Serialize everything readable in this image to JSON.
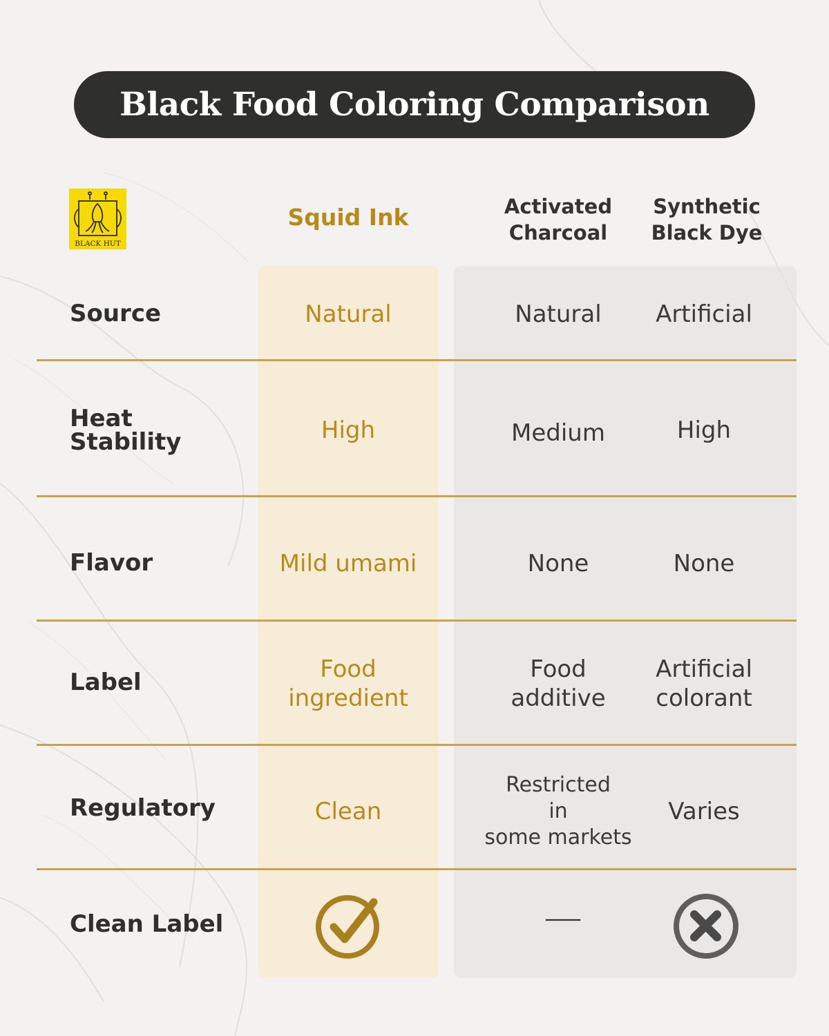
{
  "title": "Black Food Coloring Comparison",
  "logo": {
    "icon": "squid-icon",
    "text": "BLACK HUT",
    "bg_color": "#f5d90a"
  },
  "columns": {
    "squid": "Squid Ink",
    "charcoal": "Activated\nCharcoal",
    "synthetic": "Synthetic\nBlack Dye"
  },
  "rows": [
    {
      "label": "Source",
      "squid": "Natural",
      "charcoal": "Natural",
      "synthetic": "Artificial"
    },
    {
      "label": "Heat\nStability",
      "squid": "High",
      "charcoal": "Medium",
      "synthetic": "High"
    },
    {
      "label": "Flavor",
      "squid": "Mild umami",
      "charcoal": "None",
      "synthetic": "None"
    },
    {
      "label": "Label",
      "squid": "Food\ningredient",
      "charcoal": "Food\nadditive",
      "synthetic": "Artificial\ncolorant"
    },
    {
      "label": "Regulatory",
      "squid": "Clean",
      "charcoal": "Restricted\nin\nsome markets",
      "synthetic": "Varies"
    },
    {
      "label": "Clean Label",
      "squid_icon": "check-circle-icon",
      "charcoal_icon": "dash-icon",
      "synthetic_icon": "x-circle-icon"
    }
  ],
  "colors": {
    "accent": "#b88a1c",
    "title_bg": "#2f2f2d",
    "divider": "#c9a24a"
  }
}
